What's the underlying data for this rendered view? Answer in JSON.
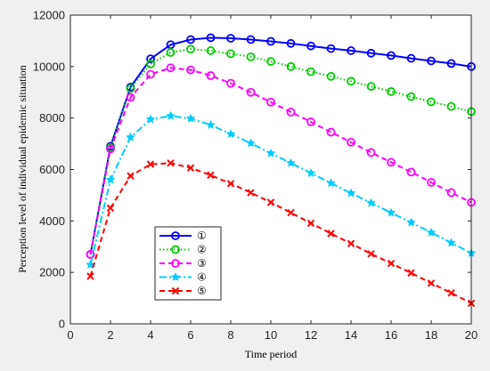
{
  "chart_data": {
    "type": "line",
    "xlabel": "Time period",
    "ylabel": "Perception level of individual epidemic situation",
    "xlim": [
      0,
      20
    ],
    "ylim": [
      0,
      12000
    ],
    "xticks": [
      0,
      2,
      4,
      6,
      8,
      10,
      12,
      14,
      16,
      18,
      20
    ],
    "yticks": [
      0,
      2000,
      4000,
      6000,
      8000,
      10000,
      12000
    ],
    "grid": false,
    "legend_position": "lower-left",
    "x": [
      1,
      2,
      3,
      4,
      5,
      6,
      7,
      8,
      9,
      10,
      11,
      12,
      13,
      14,
      15,
      16,
      17,
      18,
      19,
      20
    ],
    "series": [
      {
        "name": "①",
        "color": "#0000ff",
        "line_style": "solid",
        "marker": "circle",
        "values": [
          2700,
          6900,
          9200,
          10300,
          10850,
          11050,
          11120,
          11100,
          11050,
          10980,
          10900,
          10800,
          10700,
          10620,
          10520,
          10430,
          10320,
          10220,
          10120,
          10000
        ]
      },
      {
        "name": "②",
        "color": "#00cc00",
        "line_style": "dotted",
        "marker": "circle",
        "values": [
          2700,
          6850,
          9150,
          10100,
          10550,
          10680,
          10620,
          10500,
          10380,
          10200,
          10000,
          9800,
          9620,
          9430,
          9230,
          9030,
          8830,
          8630,
          8450,
          8250
        ]
      },
      {
        "name": "③",
        "color": "#ff00ff",
        "line_style": "dashed",
        "marker": "circle",
        "values": [
          2700,
          6800,
          8800,
          9700,
          9950,
          9870,
          9650,
          9350,
          9000,
          8620,
          8230,
          7850,
          7450,
          7060,
          6660,
          6280,
          5900,
          5500,
          5100,
          4720
        ]
      },
      {
        "name": "④",
        "color": "#00ccff",
        "line_style": "dashdot",
        "marker": "star",
        "values": [
          2300,
          5600,
          7250,
          7950,
          8080,
          7980,
          7730,
          7380,
          7020,
          6630,
          6250,
          5860,
          5470,
          5080,
          4700,
          4320,
          3940,
          3550,
          3150,
          2750
        ]
      },
      {
        "name": "⑤",
        "color": "#ff0000",
        "line_style": "dashed",
        "marker": "x",
        "values": [
          1850,
          4500,
          5750,
          6200,
          6250,
          6060,
          5780,
          5450,
          5100,
          4720,
          4320,
          3910,
          3510,
          3120,
          2720,
          2350,
          1980,
          1580,
          1200,
          800
        ]
      }
    ]
  }
}
